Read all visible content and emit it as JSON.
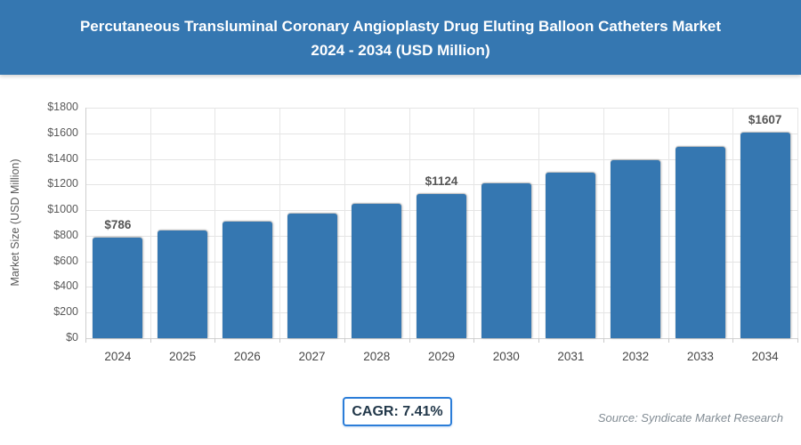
{
  "header": {
    "title_line1": "Percutaneous Transluminal Coronary Angioplasty Drug Eluting Balloon Catheters Market",
    "title_line2": "2024 - 2034 (USD Million)",
    "bg_color": "#3577b1",
    "text_color": "#ffffff"
  },
  "chart_data": {
    "type": "bar",
    "title": "Percutaneous Transluminal Coronary Angioplasty Drug Eluting Balloon Catheters Market 2024 - 2034 (USD Million)",
    "categories": [
      "2024",
      "2025",
      "2026",
      "2027",
      "2028",
      "2029",
      "2030",
      "2031",
      "2032",
      "2033",
      "2034"
    ],
    "values": [
      786,
      844,
      907,
      974,
      1046,
      1124,
      1207,
      1296,
      1393,
      1496,
      1607
    ],
    "value_labels": [
      "$786",
      null,
      null,
      null,
      null,
      "$1124",
      null,
      null,
      null,
      null,
      "$1607"
    ],
    "xlabel": "",
    "ylabel": "Market Size (USD Million)",
    "ylim": [
      0,
      1800
    ],
    "ytick_step": 200,
    "ytick_labels": [
      "$0",
      "$200",
      "$400",
      "$600",
      "$800",
      "$1000",
      "$1200",
      "$1400",
      "$1600",
      "$1800"
    ],
    "grid": true,
    "legend": false,
    "bar_color": "#3577b1",
    "gridline_color": "#e4e4e4"
  },
  "footer": {
    "cagr_label": "CAGR: 7.41%",
    "cagr_border_color": "#2b7dd8",
    "source": "Source: Syndicate Market Research"
  }
}
